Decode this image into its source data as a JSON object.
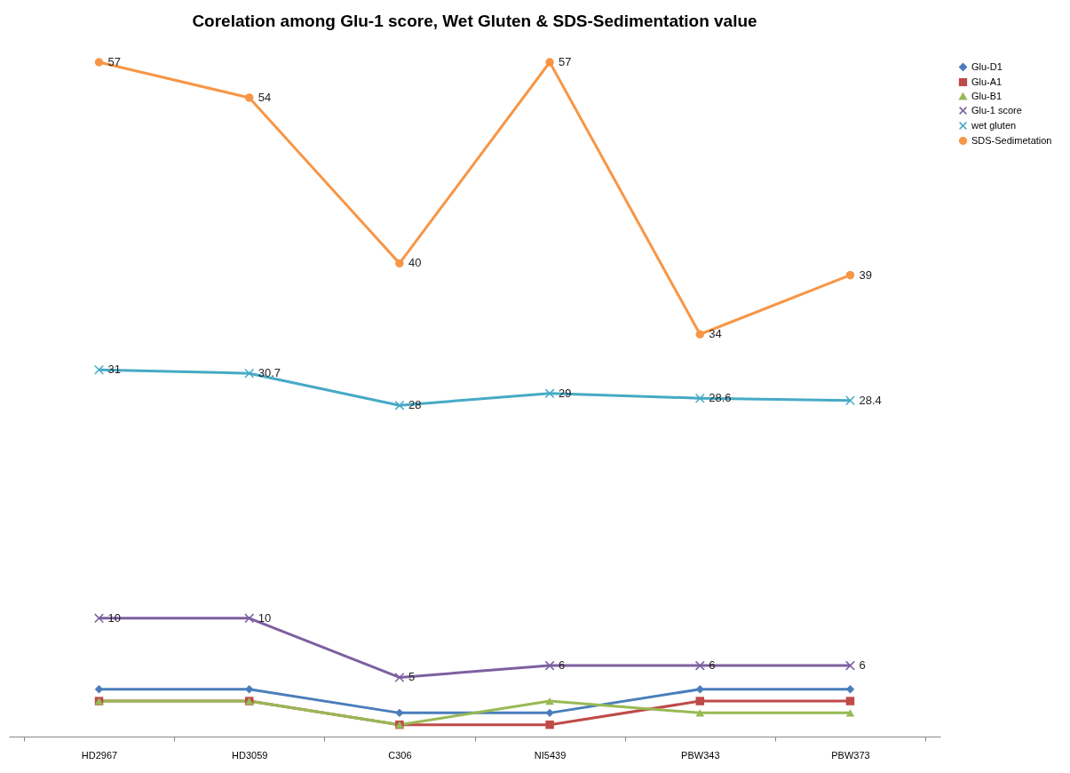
{
  "chart_data": {
    "type": "line",
    "title": "Corelation among  Glu-1 score, Wet Gluten & SDS-Sedimentation  value",
    "categories": [
      "HD2967",
      "HD3059",
      "C306",
      "NI5439",
      "PBW343",
      "PBW373"
    ],
    "tick_labels": "x",
    "grid": false,
    "legend": "right",
    "line_style": "solid",
    "series": [
      {
        "name": "Glu-D1",
        "color": "#4a7ebb",
        "marker": "diamond",
        "values": [
          4,
          4,
          2,
          2,
          4,
          4
        ]
      },
      {
        "name": "Glu-A1",
        "color": "#be4b48",
        "marker": "square",
        "values": [
          3,
          3,
          1,
          1,
          3,
          3
        ]
      },
      {
        "name": "Glu-B1",
        "color": "#98b954",
        "marker": "triangle",
        "values": [
          3,
          3,
          1,
          3,
          2,
          2
        ]
      },
      {
        "name": "Glu-1 score",
        "color": "#7d60a0",
        "marker": "cross",
        "values": [
          10,
          10,
          5,
          6,
          6,
          6
        ],
        "value_labels": [
          "10",
          "10",
          "5",
          "6",
          "6",
          "6"
        ]
      },
      {
        "name": "wet gluten",
        "color": "#46aac5",
        "marker": "cross",
        "values": [
          31,
          30.7,
          28,
          29,
          28.6,
          28.4
        ],
        "value_labels": [
          "31",
          "30.7",
          "28",
          "29",
          "28.6",
          "28.4"
        ]
      },
      {
        "name": "SDS-Sedimetation",
        "color": "#f79646",
        "marker": "circle",
        "values": [
          57,
          54,
          40,
          57,
          34,
          39
        ],
        "value_labels": [
          "57",
          "54",
          "40",
          "57",
          "34",
          "39"
        ]
      }
    ]
  }
}
